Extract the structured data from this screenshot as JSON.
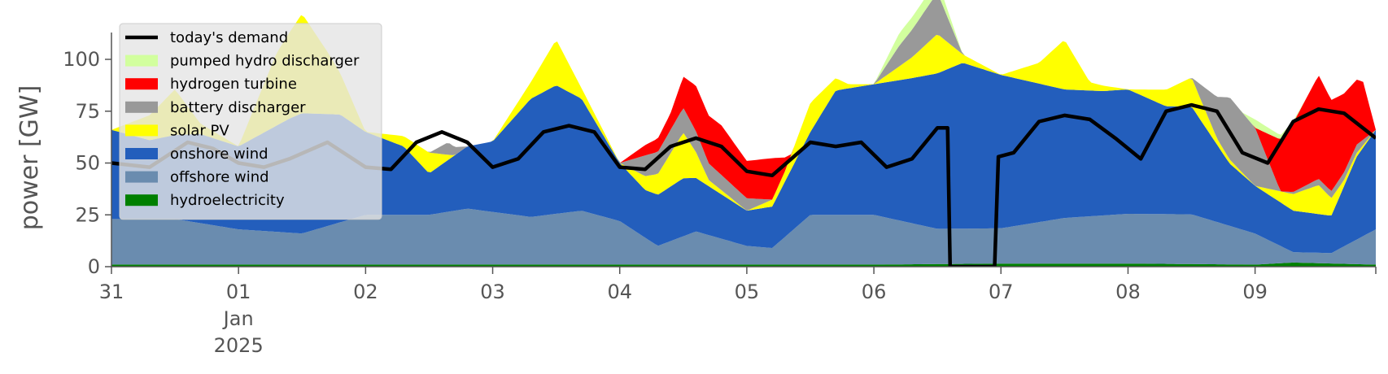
{
  "chart_data": {
    "type": "area",
    "ylabel": "power [GW]",
    "ylim": [
      0,
      120
    ],
    "yticks": [
      0,
      25,
      50,
      75,
      100
    ],
    "xlim": [
      0,
      9.95
    ],
    "xticks": [
      {
        "x": 0,
        "label": "31"
      },
      {
        "x": 1,
        "label": "01",
        "sub": [
          "Jan",
          "2025"
        ]
      },
      {
        "x": 2,
        "label": "02"
      },
      {
        "x": 3,
        "label": "03"
      },
      {
        "x": 4,
        "label": "04"
      },
      {
        "x": 5,
        "label": "05"
      },
      {
        "x": 6,
        "label": "06"
      },
      {
        "x": 7,
        "label": "07"
      },
      {
        "x": 8,
        "label": "08"
      },
      {
        "x": 9,
        "label": "09"
      }
    ],
    "x_unit": "days since 31 Dec 2024",
    "grid": false,
    "legend_position": "top-left",
    "stack": [
      {
        "name": "hydroelectricity",
        "color": "#008000",
        "points": [
          [
            0,
            1
          ],
          [
            2,
            1
          ],
          [
            4,
            1
          ],
          [
            6,
            1
          ],
          [
            7,
            1.5
          ],
          [
            8,
            1.5
          ],
          [
            9,
            1
          ],
          [
            9.3,
            2
          ],
          [
            9.95,
            1
          ]
        ]
      },
      {
        "name": "offshore wind",
        "color": "#6a8caf",
        "points": [
          [
            0,
            22
          ],
          [
            0.5,
            22
          ],
          [
            1,
            17
          ],
          [
            1.5,
            15
          ],
          [
            2,
            24
          ],
          [
            2.5,
            24
          ],
          [
            2.8,
            27
          ],
          [
            3.3,
            23
          ],
          [
            3.7,
            26
          ],
          [
            4,
            21
          ],
          [
            4.3,
            9
          ],
          [
            4.6,
            16
          ],
          [
            5,
            9
          ],
          [
            5.2,
            8
          ],
          [
            5.5,
            24
          ],
          [
            6,
            24
          ],
          [
            6.5,
            17
          ],
          [
            7,
            17
          ],
          [
            7.5,
            22
          ],
          [
            8,
            24
          ],
          [
            8.5,
            24
          ],
          [
            9,
            15
          ],
          [
            9.3,
            5
          ],
          [
            9.6,
            5
          ],
          [
            9.95,
            17
          ]
        ]
      },
      {
        "name": "onshore wind",
        "color": "#235ebc",
        "points": [
          [
            0,
            43
          ],
          [
            0.3,
            38
          ],
          [
            0.7,
            43
          ],
          [
            1,
            40
          ],
          [
            1.4,
            55
          ],
          [
            1.5,
            58
          ],
          [
            1.8,
            52
          ],
          [
            2,
            40
          ],
          [
            2.3,
            33
          ],
          [
            2.5,
            20
          ],
          [
            2.8,
            30
          ],
          [
            3,
            34
          ],
          [
            3.3,
            57
          ],
          [
            3.5,
            62
          ],
          [
            3.7,
            54
          ],
          [
            4,
            28
          ],
          [
            4.2,
            23
          ],
          [
            4.5,
            28
          ],
          [
            5,
            17
          ],
          [
            5.2,
            20
          ],
          [
            5.5,
            40
          ],
          [
            5.7,
            60
          ],
          [
            6,
            63
          ],
          [
            6.3,
            70
          ],
          [
            6.7,
            80
          ],
          [
            7,
            74
          ],
          [
            7.5,
            62
          ],
          [
            7.8,
            60
          ],
          [
            8,
            60
          ],
          [
            8.3,
            52
          ],
          [
            8.5,
            52
          ],
          [
            8.8,
            30
          ],
          [
            9,
            23
          ],
          [
            9.3,
            20
          ],
          [
            9.6,
            18
          ],
          [
            9.8,
            40
          ],
          [
            9.95,
            48
          ]
        ]
      },
      {
        "name": "solar PV",
        "color": "#ffff00",
        "points": [
          [
            0,
            0
          ],
          [
            0.3,
            12
          ],
          [
            0.5,
            22
          ],
          [
            0.7,
            5
          ],
          [
            1,
            0
          ],
          [
            1.3,
            35
          ],
          [
            1.5,
            48
          ],
          [
            1.7,
            30
          ],
          [
            2,
            0
          ],
          [
            2.3,
            5
          ],
          [
            2.5,
            10
          ],
          [
            2.7,
            0
          ],
          [
            3,
            0
          ],
          [
            3.3,
            8
          ],
          [
            3.5,
            22
          ],
          [
            3.7,
            5
          ],
          [
            4,
            0
          ],
          [
            4.3,
            10
          ],
          [
            4.5,
            22
          ],
          [
            4.7,
            3
          ],
          [
            5,
            0
          ],
          [
            5.3,
            5
          ],
          [
            5.5,
            14
          ],
          [
            5.8,
            2
          ],
          [
            6,
            0
          ],
          [
            6.3,
            10
          ],
          [
            6.5,
            19
          ],
          [
            6.7,
            4
          ],
          [
            7,
            0
          ],
          [
            7.3,
            10
          ],
          [
            7.5,
            24
          ],
          [
            7.7,
            4
          ],
          [
            8,
            0
          ],
          [
            8.3,
            8
          ],
          [
            8.5,
            14
          ],
          [
            8.7,
            3
          ],
          [
            9,
            0
          ],
          [
            9.3,
            8
          ],
          [
            9.5,
            14
          ],
          [
            9.7,
            3
          ],
          [
            9.95,
            0
          ]
        ]
      },
      {
        "name": "battery discharger",
        "color": "#999999",
        "points": [
          [
            0,
            0
          ],
          [
            2.5,
            0
          ],
          [
            2.65,
            6
          ],
          [
            2.8,
            0
          ],
          [
            4,
            0
          ],
          [
            4.2,
            10
          ],
          [
            4.5,
            12
          ],
          [
            4.7,
            8
          ],
          [
            5,
            6
          ],
          [
            5.2,
            0
          ],
          [
            6,
            0
          ],
          [
            6.2,
            10
          ],
          [
            6.5,
            20
          ],
          [
            6.7,
            0
          ],
          [
            8.5,
            0
          ],
          [
            8.8,
            30
          ],
          [
            9,
            28
          ],
          [
            9.2,
            0
          ],
          [
            9.5,
            3
          ],
          [
            9.8,
            4
          ],
          [
            9.95,
            0
          ]
        ]
      },
      {
        "name": "hydrogen turbine",
        "color": "#ff0000",
        "points": [
          [
            0,
            0
          ],
          [
            4,
            0
          ],
          [
            4.2,
            5
          ],
          [
            4.4,
            8
          ],
          [
            4.6,
            22
          ],
          [
            4.8,
            24
          ],
          [
            5,
            18
          ],
          [
            5.2,
            20
          ],
          [
            5.35,
            0
          ],
          [
            9,
            0
          ],
          [
            9.2,
            25
          ],
          [
            9.5,
            50
          ],
          [
            9.7,
            38
          ],
          [
            9.85,
            28
          ],
          [
            9.95,
            0
          ]
        ]
      },
      {
        "name": "pumped hydro discharger",
        "color": "#d2ff9e",
        "points": [
          [
            0,
            0
          ],
          [
            6,
            0
          ],
          [
            6.2,
            6
          ],
          [
            6.5,
            6
          ],
          [
            6.7,
            0
          ],
          [
            8.9,
            0
          ],
          [
            9.0,
            4
          ],
          [
            9.2,
            2
          ],
          [
            9.4,
            0
          ],
          [
            9.95,
            0
          ]
        ]
      }
    ],
    "line": {
      "name": "today's demand",
      "color": "#000000",
      "points": [
        [
          0,
          50
        ],
        [
          0.3,
          48
        ],
        [
          0.6,
          60
        ],
        [
          0.8,
          57
        ],
        [
          1,
          50
        ],
        [
          1.2,
          48
        ],
        [
          1.4,
          52
        ],
        [
          1.7,
          60
        ],
        [
          2,
          48
        ],
        [
          2.2,
          47
        ],
        [
          2.4,
          60
        ],
        [
          2.6,
          65
        ],
        [
          2.8,
          60
        ],
        [
          3,
          48
        ],
        [
          3.2,
          52
        ],
        [
          3.4,
          65
        ],
        [
          3.6,
          68
        ],
        [
          3.8,
          65
        ],
        [
          4,
          48
        ],
        [
          4.2,
          47
        ],
        [
          4.4,
          58
        ],
        [
          4.6,
          62
        ],
        [
          4.8,
          58
        ],
        [
          5,
          46
        ],
        [
          5.2,
          44
        ],
        [
          5.5,
          60
        ],
        [
          5.7,
          58
        ],
        [
          5.9,
          60
        ],
        [
          6.1,
          48
        ],
        [
          6.3,
          52
        ],
        [
          6.5,
          67
        ],
        [
          6.58,
          67
        ],
        [
          6.6,
          0
        ],
        [
          6.95,
          0
        ],
        [
          6.98,
          53
        ],
        [
          7.1,
          55
        ],
        [
          7.3,
          70
        ],
        [
          7.5,
          73
        ],
        [
          7.7,
          71
        ],
        [
          7.9,
          62
        ],
        [
          8.1,
          52
        ],
        [
          8.3,
          75
        ],
        [
          8.5,
          78
        ],
        [
          8.7,
          75
        ],
        [
          8.9,
          55
        ],
        [
          9.1,
          50
        ],
        [
          9.3,
          70
        ],
        [
          9.5,
          76
        ],
        [
          9.7,
          74
        ],
        [
          9.95,
          62
        ]
      ]
    },
    "legend": [
      {
        "name": "today's demand",
        "kind": "line"
      },
      {
        "name": "pumped hydro discharger",
        "kind": "patch"
      },
      {
        "name": "hydrogen turbine",
        "kind": "patch"
      },
      {
        "name": "battery discharger",
        "kind": "patch"
      },
      {
        "name": "solar PV",
        "kind": "patch"
      },
      {
        "name": "onshore wind",
        "kind": "patch"
      },
      {
        "name": "offshore wind",
        "kind": "patch"
      },
      {
        "name": "hydroelectricity",
        "kind": "patch"
      }
    ]
  }
}
